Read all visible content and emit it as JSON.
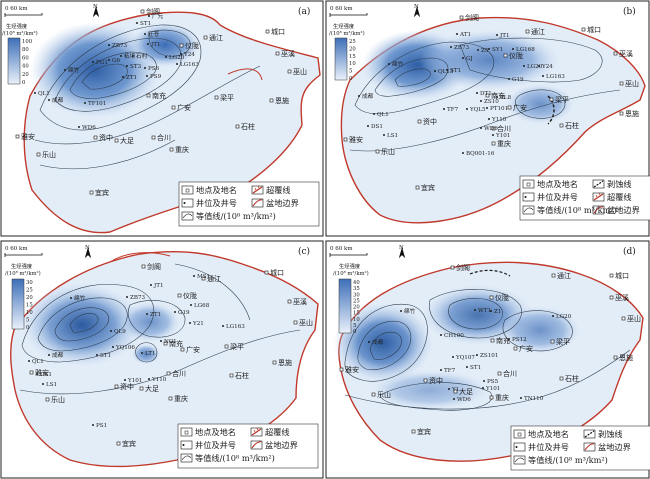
{
  "panels": [
    {
      "id": "a",
      "tag": "(a)",
      "scale_text": "0 60 km",
      "colorbar": {
        "title": "生烃强度",
        "unit": "/(10⁸ m³/km²)",
        "ticks": [
          "100",
          "80",
          "60",
          "40",
          "20",
          "0"
        ],
        "max_color": "#3e6fb8",
        "min_color": "#e9f1fb"
      },
      "cities": [
        "通江",
        "城口",
        "巫溪",
        "巫山",
        "恩施",
        "石柱",
        "梁平",
        "广安",
        "南充",
        "合川",
        "大足",
        "重庆",
        "资中",
        "乐山",
        "雅安",
        "宜宾",
        "剑阁",
        "仪陇"
      ],
      "wells": [
        "ST1",
        "旺苍",
        "JT1",
        "ZB73",
        "柘坝",
        "G6",
        "ST3",
        "石村",
        "LG20",
        "LG163",
        "Y24",
        "ZT1",
        "FG1",
        "PS6",
        "PS9",
        "QL1",
        "成都",
        "TF101",
        "WD6",
        "绵竹",
        "广元"
      ],
      "legend": {
        "items": [
          "地点及地名",
          "超覆线",
          "井位及井号",
          "盆地边界",
          "等值线/(10⁸ m³/km²)"
        ],
        "well_sample": "WD6",
        "contour_sample": "10"
      }
    },
    {
      "id": "b",
      "tag": "(b)",
      "scale_text": "0 60 km",
      "colorbar": {
        "title": "生烃强度",
        "unit": "/(10⁸ m³/km²)",
        "ticks": [
          "25",
          "20",
          "15",
          "10",
          "5",
          "0"
        ],
        "max_color": "#3e6fb8",
        "min_color": "#e9f1fb"
      },
      "cities": [
        "通江",
        "城口",
        "巫溪",
        "巫山",
        "恩施",
        "石柱",
        "梁平",
        "广安",
        "南充",
        "合川",
        "重庆",
        "资中",
        "乐山",
        "雅安",
        "宜宾",
        "剑阁",
        "仪陇"
      ],
      "wells": [
        "AT1",
        "JT1",
        "ZB73",
        "Z5",
        "SY1",
        "LG168",
        "GJ",
        "LG20",
        "Y24",
        "LG163",
        "G19",
        "QL13",
        "ST1",
        "DT1",
        "ZS10",
        "PL8",
        "QL1",
        "YQL5",
        "PT101",
        "Y110",
        "TF7",
        "WD6",
        "Y101",
        "DS1",
        "LS1",
        "BQ001-16",
        "成都",
        "绵竹"
      ],
      "legend": {
        "items": [
          "地点及地名",
          "剥蚀线",
          "井位及井号",
          "超覆线",
          "盆地边界",
          "等值线/(10⁸ m³/km²)"
        ],
        "well_sample": "WD6",
        "contour_sample": "10"
      }
    },
    {
      "id": "c",
      "tag": "(c)",
      "scale_text": "0 60 km",
      "colorbar": {
        "title": "生烃强度",
        "unit": "/(10⁸ m³/km²)",
        "ticks": [
          "30",
          "25",
          "20",
          "15",
          "10",
          "5",
          "0"
        ],
        "max_color": "#3e6fb8",
        "min_color": "#e9f1fb"
      },
      "cities": [
        "剑阁",
        "通江",
        "城口",
        "巫溪",
        "巫山",
        "恩施",
        "石柱",
        "梁平",
        "广安",
        "南充",
        "合川",
        "大足",
        "重庆",
        "资中",
        "乐山",
        "雅安",
        "宜宾",
        "仪陇"
      ],
      "wells": [
        "MS1",
        "ZB73",
        "JT1",
        "LG68",
        "LG163",
        "Y21",
        "G19",
        "ZT1",
        "QL9",
        "QL1",
        "ST1",
        "YQ106",
        "NC1",
        "LT1",
        "Y101",
        "Y110",
        "DS1",
        "LS1",
        "PS1",
        "成都",
        "绵竹"
      ],
      "legend": {
        "items": [
          "地点及地名",
          "超覆线",
          "井位及井号",
          "盆地边界",
          "等值线/(10⁸ m³/km²)"
        ],
        "well_sample": "WD6",
        "contour_sample": "10"
      }
    },
    {
      "id": "d",
      "tag": "(d)",
      "scale_text": "0 60 km",
      "colorbar": {
        "title": "生烃强度",
        "unit": "/(10⁸ m³/km²)",
        "ticks": [
          "40",
          "35",
          "30",
          "25",
          "20",
          "15",
          "10",
          "5",
          "0"
        ],
        "max_color": "#3e6fb8",
        "min_color": "#e9f1fb"
      },
      "cities": [
        "剑阁",
        "通江",
        "城口",
        "巫溪",
        "巫山",
        "恩施",
        "石柱",
        "梁平",
        "广安",
        "南充",
        "合川",
        "大足",
        "重庆",
        "资中",
        "乐山",
        "雅安",
        "宜宾",
        "仪陇"
      ],
      "wells": [
        "WT1",
        "Z1",
        "LG20",
        "CH100",
        "YQ107",
        "ZS101",
        "ST1",
        "TF7",
        "PS12",
        "PS5",
        "Y101",
        "Y1",
        "TN110",
        "WD6",
        "成都",
        "绵竹"
      ],
      "legend": {
        "items": [
          "地点及地名",
          "剥蚀线",
          "井位及井号",
          "盆地边界",
          "等值线/(10⁸ m³/km²)"
        ],
        "well_sample": "WD6",
        "contour_sample": "100"
      }
    }
  ],
  "colors": {
    "boundary": "#c0392b",
    "contour": "#2d3e50",
    "basin_fill": "#e3edf8",
    "frame": "#222222"
  }
}
